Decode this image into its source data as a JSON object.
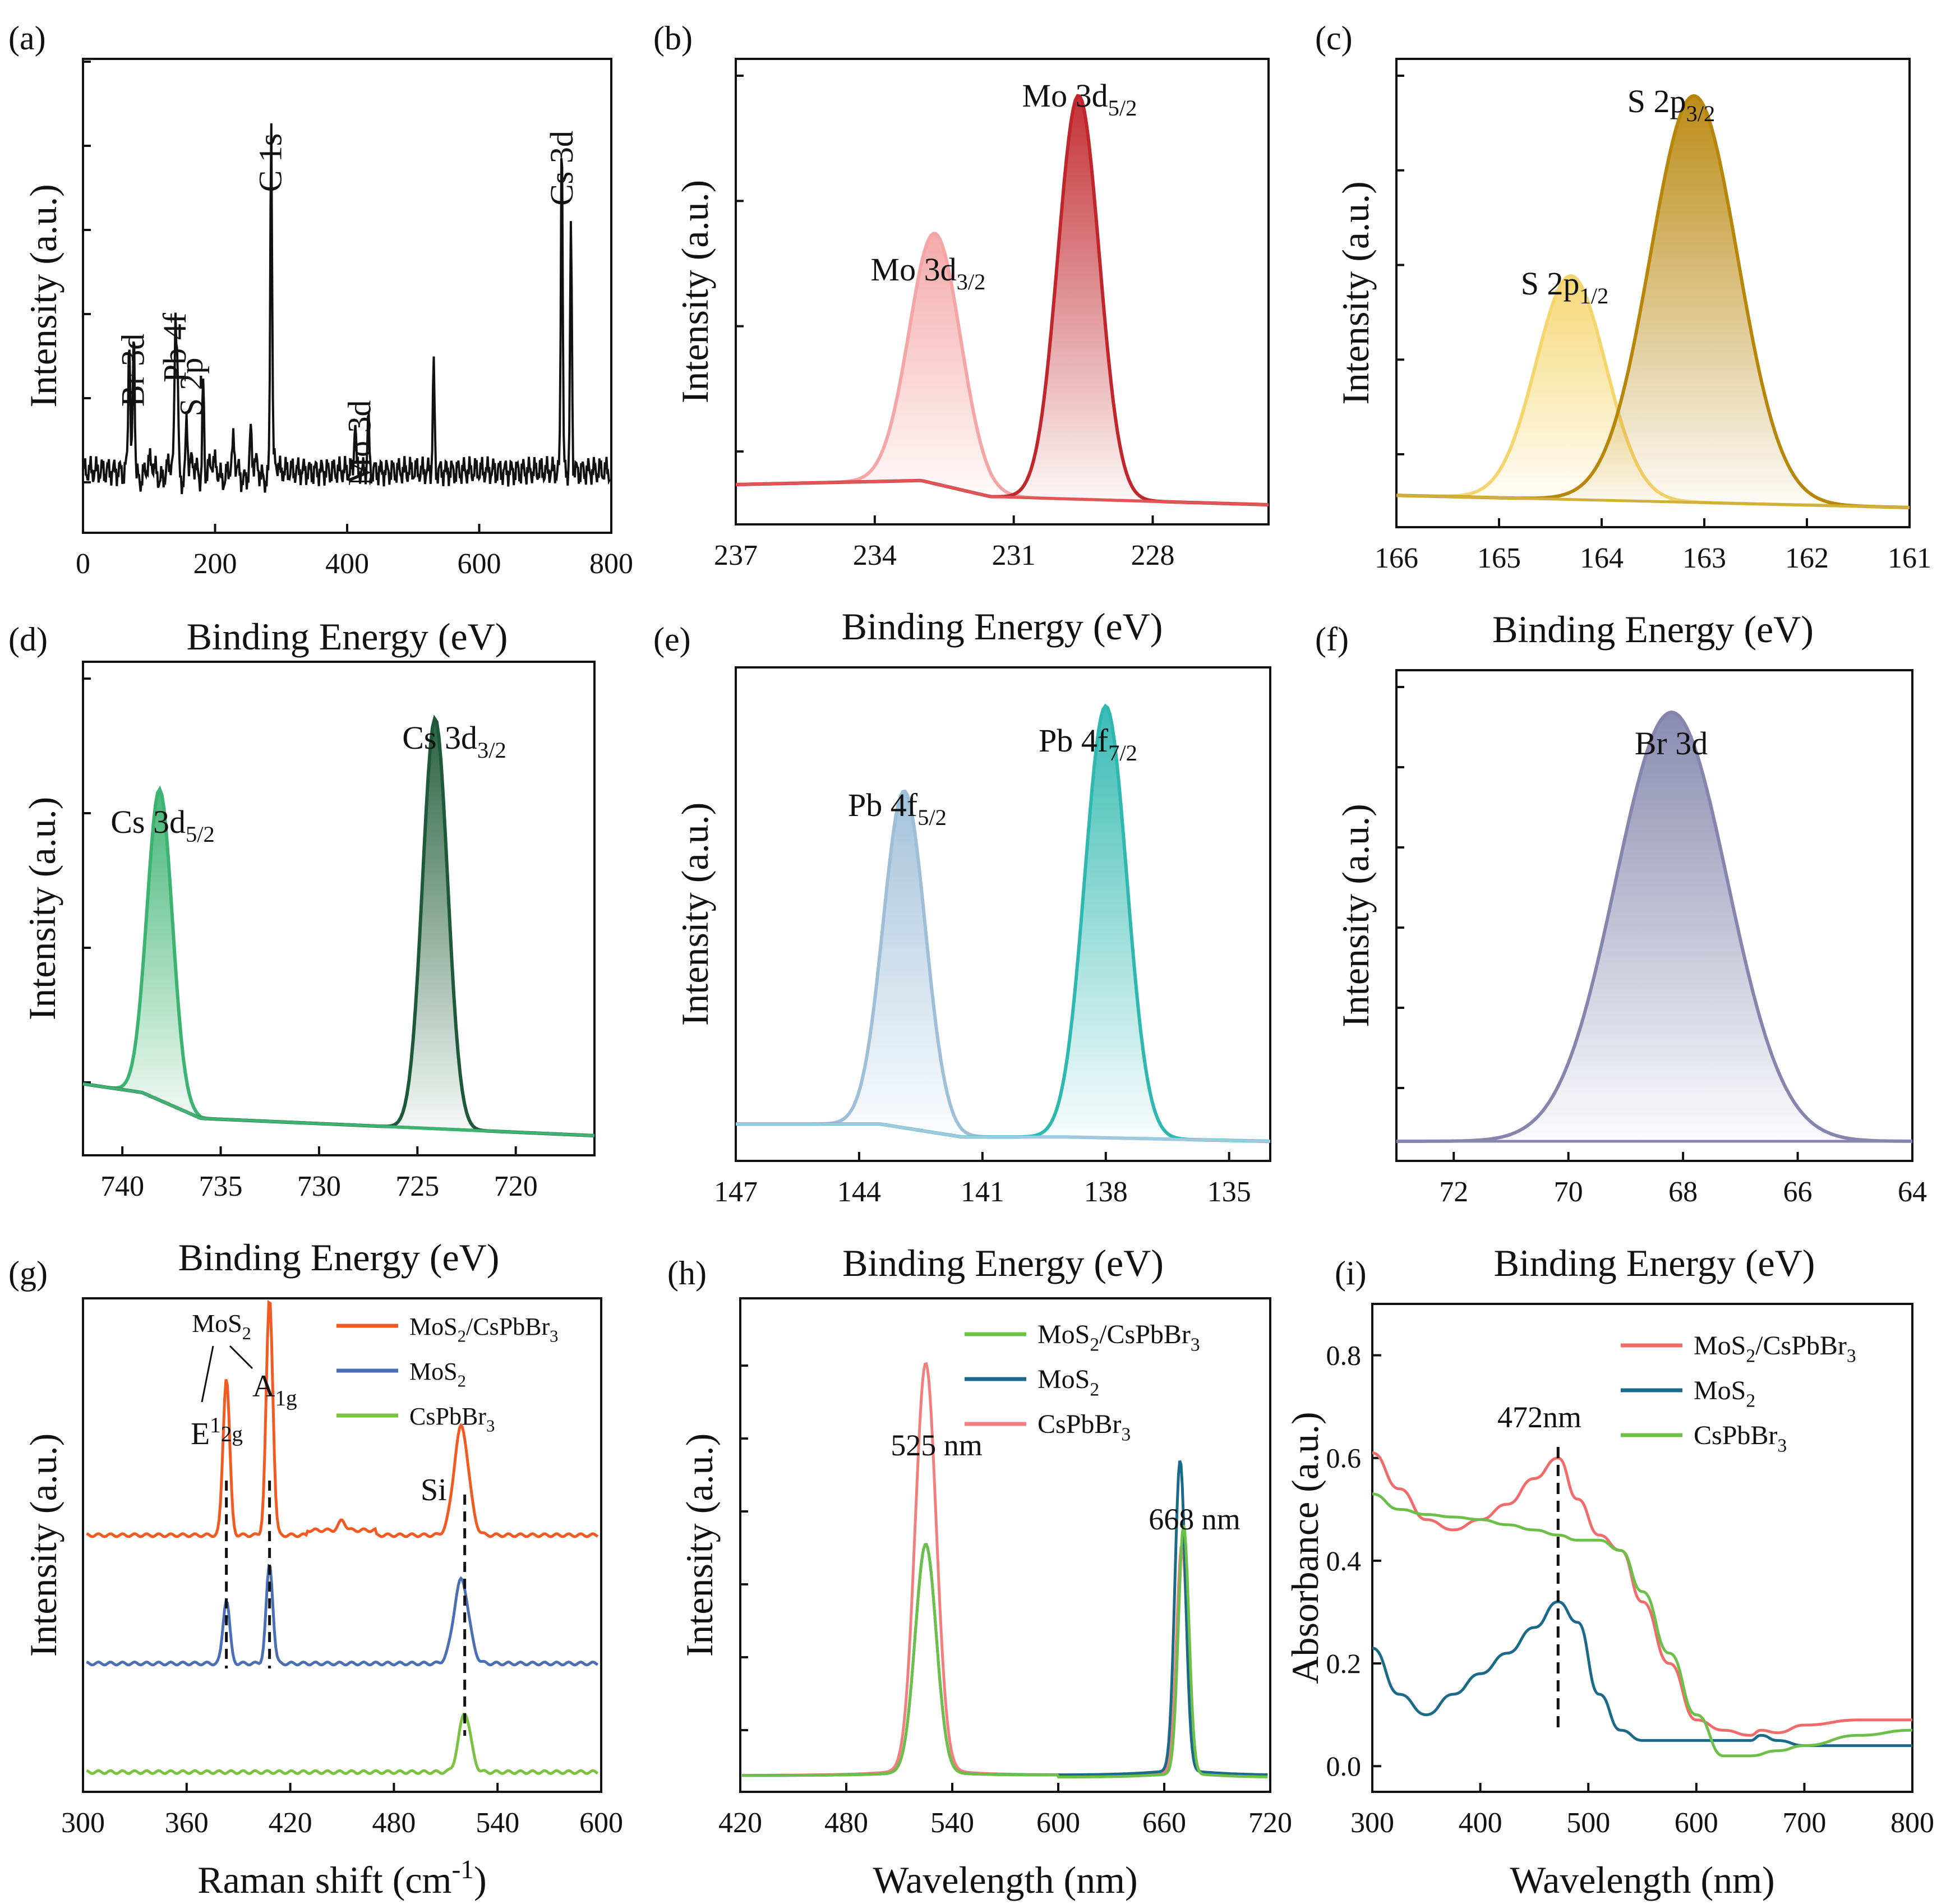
{
  "figure": {
    "panels": [
      {
        "label": "(a)",
        "xlabel": "Binding Energy (eV)",
        "ylabel": "Intensity (a.u.)",
        "xticks": [
          "0",
          "200",
          "400",
          "600",
          "800"
        ],
        "annotations": [
          {
            "text": "Br 3d",
            "x": 77
          },
          {
            "text": "Pb 4f",
            "x": 140
          },
          {
            "text": "S 2p",
            "x": 165
          },
          {
            "text": "C 1s",
            "x": 285
          },
          {
            "text": "Mo 3d",
            "x": 420
          },
          {
            "text": "Cs 3d",
            "x": 726
          }
        ]
      },
      {
        "label": "(b)",
        "xlabel": "Binding Energy (eV)",
        "ylabel": "Intensity (a.u.)",
        "xticks": [
          "237",
          "234",
          "231",
          "228"
        ],
        "peaks": [
          {
            "main": "Mo 3d",
            "sub": "3/2"
          },
          {
            "main": "Mo 3d",
            "sub": "5/2"
          }
        ]
      },
      {
        "label": "(c)",
        "xlabel": "Binding Energy (eV)",
        "ylabel": "Intensity (a.u.)",
        "xticks": [
          "166",
          "165",
          "164",
          "163",
          "162",
          "161"
        ],
        "peaks": [
          {
            "main": "S 2p",
            "sub": "1/2"
          },
          {
            "main": "S 2p",
            "sub": "3/2"
          }
        ]
      },
      {
        "label": "(d)",
        "xlabel": "Binding Energy (eV)",
        "ylabel": "Intensity (a.u.)",
        "xticks": [
          "740",
          "735",
          "730",
          "725",
          "720"
        ],
        "peaks": [
          {
            "main": "Cs 3d",
            "sub": "5/2"
          },
          {
            "main": "Cs 3d",
            "sub": "3/2"
          }
        ]
      },
      {
        "label": "(e)",
        "xlabel": "Binding Energy (eV)",
        "ylabel": "Intensity (a.u.)",
        "xticks": [
          "147",
          "144",
          "141",
          "138",
          "135"
        ],
        "peaks": [
          {
            "main": "Pb 4f",
            "sub": "5/2"
          },
          {
            "main": "Pb 4f",
            "sub": "7/2"
          }
        ]
      },
      {
        "label": "(f)",
        "xlabel": "Binding Energy (eV)",
        "ylabel": "Intensity (a.u.)",
        "xticks": [
          "72",
          "70",
          "68",
          "66",
          "64"
        ],
        "peaks": [
          {
            "main": "Br 3d",
            "sub": ""
          }
        ]
      },
      {
        "label": "(g)",
        "xlabel": "Raman shift (cm",
        "xlabel_sup": "-1",
        "xlabel_end": ")",
        "ylabel": "Intensity (a.u.)",
        "xticks": [
          "300",
          "360",
          "420",
          "480",
          "540",
          "600"
        ],
        "legend": [
          {
            "main": "MoS",
            "sub": "2",
            "rest": "/CsPbBr",
            "sub2": "3",
            "color": "#f15a22"
          },
          {
            "main": "MoS",
            "sub": "2",
            "rest": "",
            "sub2": "",
            "color": "#4a6fb5"
          },
          {
            "main": "CsPbBr",
            "sub": "3",
            "rest": "",
            "sub2": "",
            "color": "#7cc242"
          }
        ],
        "annotations": {
          "mos2": "MoS",
          "mos2_sub": "2",
          "e": "E",
          "e_sup": "1",
          "e_sub": "2g",
          "a": "A",
          "a_sub": "1g",
          "si": "Si"
        }
      },
      {
        "label": "(h)",
        "xlabel": "Wavelength (nm)",
        "ylabel": "Intensity (a.u.)",
        "xticks": [
          "420",
          "480",
          "540",
          "600",
          "660",
          "720"
        ],
        "legend": [
          {
            "main": "MoS",
            "sub": "2",
            "rest": "/CsPbBr",
            "sub2": "3",
            "color": "#6cc04a"
          },
          {
            "main": "MoS",
            "sub": "2",
            "rest": "",
            "sub2": "",
            "color": "#1b6a8a"
          },
          {
            "main": "CsPbBr",
            "sub": "3",
            "rest": "",
            "sub2": "",
            "color": "#f08080"
          }
        ],
        "annotations": [
          "525 nm",
          "668 nm"
        ]
      },
      {
        "label": "(i)",
        "xlabel": "Wavelength (nm)",
        "ylabel": "Absorbance (a.u.)",
        "xticks": [
          "300",
          "400",
          "500",
          "600",
          "700",
          "800"
        ],
        "yticks": [
          "0.0",
          "0.2",
          "0.4",
          "0.6",
          "0.8"
        ],
        "legend": [
          {
            "main": "MoS",
            "sub": "2",
            "rest": "/CsPbBr",
            "sub2": "3",
            "color": "#f26b6b"
          },
          {
            "main": "MoS",
            "sub": "2",
            "rest": "",
            "sub2": "",
            "color": "#1b6a8a"
          },
          {
            "main": "CsPbBr",
            "sub": "3",
            "rest": "",
            "sub2": "",
            "color": "#6cc04a"
          }
        ],
        "annotations": [
          "472nm"
        ]
      }
    ]
  },
  "chart_data": [
    {
      "panel": "a",
      "type": "line",
      "title": "",
      "xlabel": "Binding Energy (eV)",
      "ylabel": "Intensity (a.u.)",
      "xlim": [
        0,
        800
      ],
      "peaks": [
        {
          "x": 70,
          "h": 0.3
        },
        {
          "x": 77,
          "h": 0.32
        },
        {
          "x": 140,
          "h": 0.33
        },
        {
          "x": 143,
          "h": 0.24
        },
        {
          "x": 157,
          "h": 0.12
        },
        {
          "x": 182,
          "h": 0.22
        },
        {
          "x": 228,
          "h": 0.05
        },
        {
          "x": 254,
          "h": 0.08
        },
        {
          "x": 285,
          "h": 0.8
        },
        {
          "x": 412,
          "h": 0.12
        },
        {
          "x": 432,
          "h": 0.12
        },
        {
          "x": 531,
          "h": 0.24
        },
        {
          "x": 725,
          "h": 0.79
        },
        {
          "x": 739,
          "h": 0.55
        }
      ]
    },
    {
      "panel": "b",
      "type": "area",
      "xlabel": "Binding Energy (eV)",
      "ylabel": "Intensity (a.u.)",
      "xlim": [
        237,
        225.5
      ],
      "series": [
        {
          "name": "Mo 3d3/2",
          "center": 232.7,
          "height": 0.62,
          "fwhm": 1.3
        },
        {
          "name": "Mo 3d5/2",
          "center": 229.6,
          "height": 1.0,
          "fwhm": 1.05
        }
      ],
      "background": [
        [
          237,
          0.05
        ],
        [
          233,
          0.06
        ],
        [
          231.5,
          0.02
        ],
        [
          225.5,
          0.0
        ]
      ]
    },
    {
      "panel": "c",
      "type": "area",
      "xlabel": "Binding Energy (eV)",
      "ylabel": "Intensity (a.u.)",
      "xlim": [
        166,
        161
      ],
      "series": [
        {
          "name": "S 2p1/2",
          "center": 164.3,
          "height": 0.55,
          "fwhm": 0.8
        },
        {
          "name": "S 2p3/2",
          "center": 163.1,
          "height": 1.0,
          "fwhm": 1.0
        }
      ],
      "background": [
        [
          166,
          0.03
        ],
        [
          161,
          0.0
        ]
      ]
    },
    {
      "panel": "d",
      "type": "area",
      "xlabel": "Binding Energy (eV)",
      "ylabel": "Intensity (a.u.)",
      "xlim": [
        742,
        716
      ],
      "series": [
        {
          "name": "Cs 3d5/2",
          "center": 738.1,
          "height": 0.72,
          "fwhm": 1.5
        },
        {
          "name": "Cs 3d3/2",
          "center": 724.1,
          "height": 0.95,
          "fwhm": 1.5
        }
      ],
      "background": [
        [
          742,
          0.12
        ],
        [
          739,
          0.1
        ],
        [
          736,
          0.04
        ],
        [
          726,
          0.02
        ],
        [
          716,
          0.0
        ]
      ]
    },
    {
      "panel": "e",
      "type": "area",
      "xlabel": "Binding Energy (eV)",
      "ylabel": "Intensity (a.u.)",
      "xlim": [
        147,
        134
      ],
      "series": [
        {
          "name": "Pb 4f5/2",
          "center": 142.9,
          "height": 0.78,
          "fwhm": 1.2
        },
        {
          "name": "Pb 4f7/2",
          "center": 138.0,
          "height": 1.0,
          "fwhm": 1.2
        }
      ],
      "background": [
        [
          147,
          0.04
        ],
        [
          143.5,
          0.04
        ],
        [
          141.5,
          0.01
        ],
        [
          139,
          0.01
        ],
        [
          134,
          0.0
        ]
      ]
    },
    {
      "panel": "f",
      "type": "area",
      "xlabel": "Binding Energy (eV)",
      "ylabel": "Intensity (a.u.)",
      "xlim": [
        73,
        64
      ],
      "series": [
        {
          "name": "Br 3d",
          "center": 68.2,
          "height": 1.0,
          "fwhm": 2.3
        }
      ],
      "background": [
        [
          73,
          0.0
        ],
        [
          64,
          0.0
        ]
      ]
    },
    {
      "panel": "g",
      "type": "line",
      "xlabel": "Raman shift (cm-1)",
      "ylabel": "Intensity (a.u.)",
      "xlim": [
        300,
        600
      ],
      "series": [
        {
          "name": "MoS2/CsPbBr3",
          "offset": 0.52,
          "peaks": [
            [
              383,
              0.32
            ],
            [
              408,
              0.48
            ],
            [
              450,
              0.02
            ],
            [
              519,
              0.22
            ]
          ]
        },
        {
          "name": "MoS2",
          "offset": 0.26,
          "peaks": [
            [
              383,
              0.13
            ],
            [
              408,
              0.2
            ],
            [
              519,
              0.17
            ]
          ]
        },
        {
          "name": "CsPbBr3",
          "offset": 0.04,
          "peaks": [
            [
              521,
              0.12
            ]
          ]
        }
      ],
      "markers": [
        383,
        408,
        521
      ]
    },
    {
      "panel": "h",
      "type": "line",
      "xlabel": "Wavelength (nm)",
      "ylabel": "Intensity (a.u.)",
      "xlim": [
        420,
        720
      ],
      "series": [
        {
          "name": "MoS2/CsPbBr3",
          "peaks": [
            [
              525,
              0.55
            ],
            [
              671,
              0.6
            ]
          ]
        },
        {
          "name": "MoS2",
          "peaks": [
            [
              525,
              0.55
            ],
            [
              669,
              0.75
            ]
          ]
        },
        {
          "name": "CsPbBr3",
          "peaks": [
            [
              525,
              0.98
            ],
            [
              670,
              0.55
            ]
          ]
        }
      ]
    },
    {
      "panel": "i",
      "type": "line",
      "xlabel": "Wavelength (nm)",
      "ylabel": "Absorbance (a.u.)",
      "xlim": [
        300,
        800
      ],
      "ylim": [
        -0.05,
        0.9
      ],
      "series": [
        {
          "name": "MoS2/CsPbBr3",
          "x": [
            300,
            325,
            350,
            375,
            400,
            425,
            450,
            472,
            490,
            510,
            530,
            550,
            575,
            600,
            625,
            650,
            660,
            675,
            700,
            750,
            800
          ],
          "y": [
            0.61,
            0.54,
            0.48,
            0.46,
            0.48,
            0.51,
            0.56,
            0.6,
            0.52,
            0.45,
            0.42,
            0.32,
            0.2,
            0.09,
            0.07,
            0.06,
            0.07,
            0.065,
            0.08,
            0.09,
            0.09
          ]
        },
        {
          "name": "MoS2",
          "x": [
            300,
            325,
            350,
            375,
            400,
            425,
            450,
            472,
            490,
            510,
            530,
            550,
            575,
            600,
            625,
            650,
            660,
            675,
            700,
            750,
            800
          ],
          "y": [
            0.23,
            0.14,
            0.1,
            0.14,
            0.18,
            0.22,
            0.27,
            0.32,
            0.28,
            0.14,
            0.07,
            0.05,
            0.05,
            0.05,
            0.05,
            0.05,
            0.06,
            0.05,
            0.04,
            0.04,
            0.04
          ]
        },
        {
          "name": "CsPbBr3",
          "x": [
            300,
            325,
            350,
            375,
            400,
            425,
            450,
            472,
            490,
            510,
            530,
            550,
            575,
            600,
            625,
            650,
            675,
            700,
            750,
            800
          ],
          "y": [
            0.53,
            0.5,
            0.49,
            0.485,
            0.48,
            0.47,
            0.46,
            0.45,
            0.44,
            0.44,
            0.42,
            0.34,
            0.22,
            0.1,
            0.02,
            0.02,
            0.03,
            0.04,
            0.06,
            0.07
          ]
        }
      ],
      "marker": 472
    }
  ]
}
